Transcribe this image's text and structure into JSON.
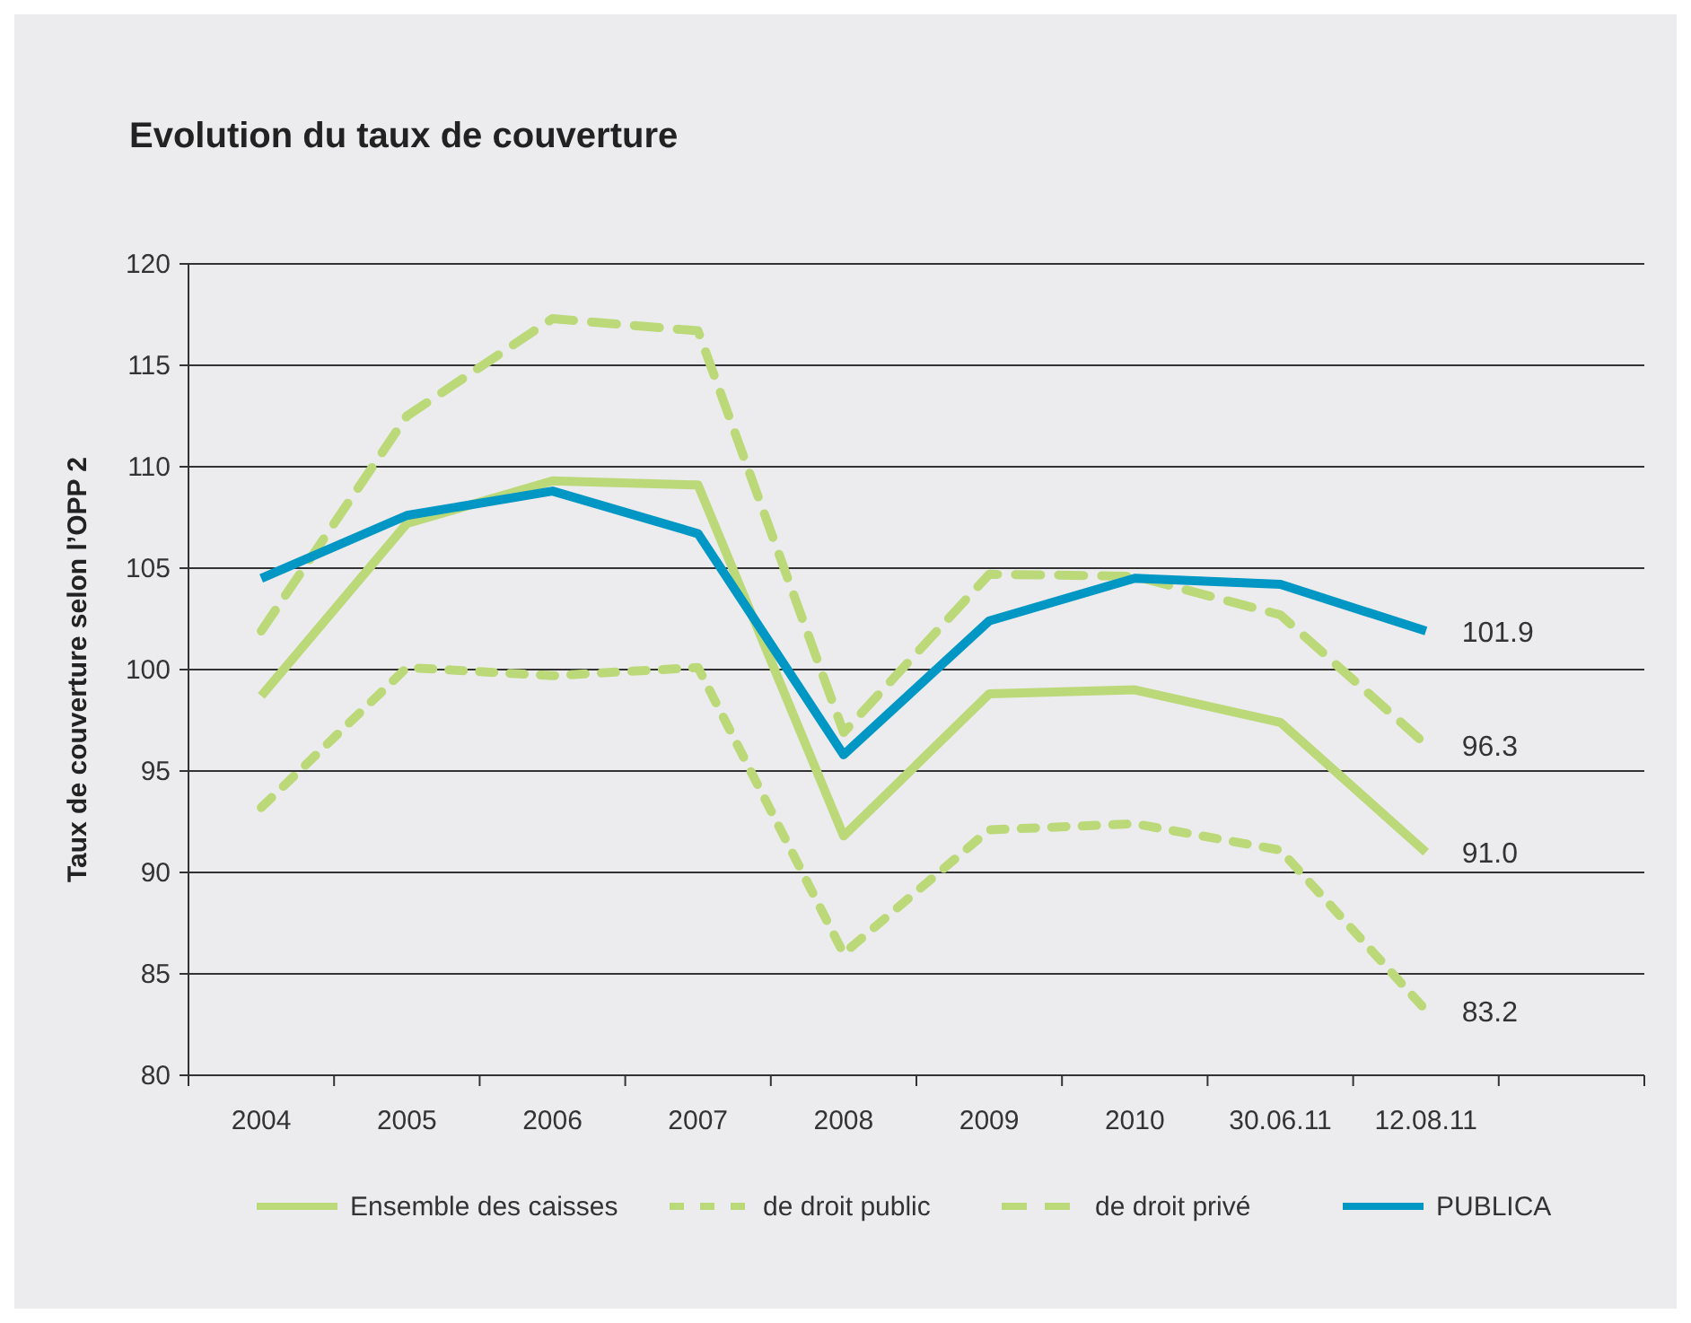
{
  "chart_data": {
    "type": "line",
    "title": "Evolution du taux de couverture",
    "ylabel": "Taux de couverture selon l’OPP 2",
    "categories": [
      "2004",
      "2005",
      "2006",
      "2007",
      "2008",
      "2009",
      "2010",
      "30.06.11",
      "12.08.11",
      null
    ],
    "ylim": [
      80,
      120
    ],
    "yticks": [
      80,
      85,
      90,
      95,
      100,
      105,
      110,
      115,
      120
    ],
    "grid": "y",
    "legend": "bottom",
    "marker": "none",
    "series": [
      {
        "name": "Ensemble des caisses",
        "color": "#bcd979",
        "line_style": "solid",
        "values": [
          98.7,
          107.2,
          109.3,
          109.1,
          91.8,
          98.8,
          99.0,
          97.4,
          91.0,
          null
        ],
        "value_labels": [
          null,
          null,
          null,
          null,
          null,
          null,
          null,
          null,
          "91.0",
          null
        ]
      },
      {
        "name": "de droit public",
        "color": "#bcd979",
        "line_style": "dotted",
        "values": [
          93.2,
          100.1,
          99.7,
          100.1,
          86.0,
          92.1,
          92.4,
          91.1,
          83.2,
          null
        ],
        "value_labels": [
          null,
          null,
          null,
          null,
          null,
          null,
          null,
          null,
          "83.2",
          null
        ]
      },
      {
        "name": "de droit privé",
        "color": "#bcd979",
        "line_style": "dashed",
        "values": [
          101.9,
          112.5,
          117.3,
          116.7,
          96.9,
          104.7,
          104.6,
          102.7,
          96.3,
          null
        ],
        "value_labels": [
          null,
          null,
          null,
          null,
          null,
          null,
          null,
          null,
          "96.3",
          null
        ]
      },
      {
        "name": "PUBLICA",
        "color": "#0097c4",
        "line_style": "solid",
        "values": [
          104.5,
          107.6,
          108.8,
          106.7,
          95.8,
          102.4,
          104.5,
          104.2,
          101.9,
          null
        ],
        "value_labels": [
          null,
          null,
          null,
          null,
          null,
          null,
          null,
          null,
          "101.9",
          null
        ]
      }
    ]
  }
}
